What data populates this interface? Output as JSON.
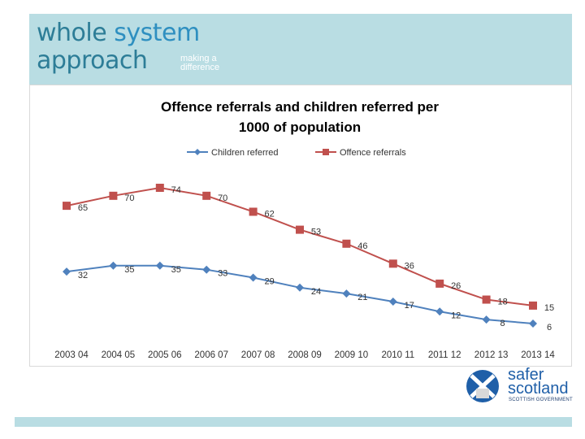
{
  "header": {
    "line1_a": "whole",
    "line1_b": "system",
    "line2": "approach",
    "tagline_1": "making a",
    "tagline_2": "difference"
  },
  "logo": {
    "line1": "safer",
    "line2": "scotland",
    "line3": "SCOTTISH GOVERNMENT"
  },
  "colors": {
    "offence": "#c0504d",
    "children": "#4f81bd",
    "header_band": "#b9dde3"
  },
  "chart_data": {
    "type": "line",
    "title_line1": "Offence referrals and children referred per",
    "title_line2": "1000 of population",
    "legend_position": "top",
    "grid": false,
    "categories": [
      "2003 04",
      "2004 05",
      "2005 06",
      "2006 07",
      "2007 08",
      "2008 09",
      "2009 10",
      "2010 11",
      "2011 12",
      "2012 13",
      "2013 14"
    ],
    "ylim": [
      0,
      80
    ],
    "series": [
      {
        "name": "Children referred",
        "values": [
          32,
          35,
          35,
          33,
          29,
          24,
          21,
          17,
          12,
          8,
          6
        ]
      },
      {
        "name": "Offence referrals",
        "values": [
          65,
          70,
          74,
          70,
          62,
          53,
          46,
          36,
          26,
          18,
          15
        ]
      }
    ]
  }
}
